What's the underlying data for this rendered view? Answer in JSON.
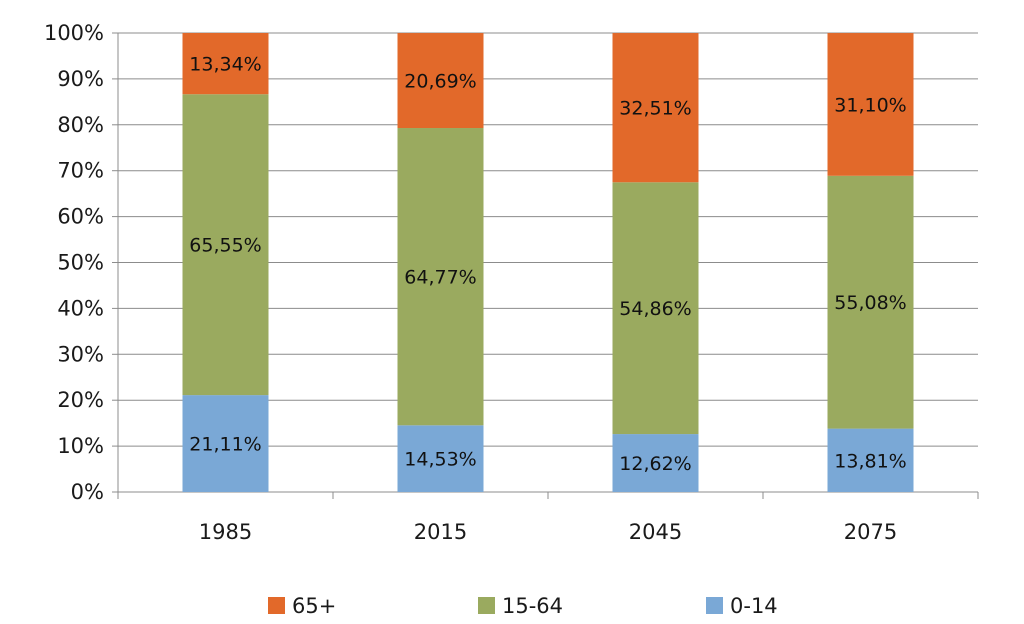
{
  "chart_data": {
    "type": "bar",
    "stacked": true,
    "categories": [
      "1985",
      "2015",
      "2045",
      "2075"
    ],
    "series": [
      {
        "name": "0-14",
        "color": "#7aa8d6",
        "values": [
          21.11,
          14.53,
          12.62,
          13.81
        ],
        "labels": [
          "21,11%",
          "14,53%",
          "12,62%",
          "13,81%"
        ]
      },
      {
        "name": "15-64",
        "color": "#9aaa5f",
        "values": [
          65.55,
          64.77,
          54.86,
          55.08
        ],
        "labels": [
          "65,55%",
          "64,77%",
          "54,86%",
          "55,08%"
        ]
      },
      {
        "name": "65+",
        "color": "#e2692a",
        "values": [
          13.34,
          20.69,
          32.51,
          31.1
        ],
        "labels": [
          "13,34%",
          "20,69%",
          "32,51%",
          "31,10%"
        ]
      }
    ],
    "y_ticks": [
      "0%",
      "10%",
      "20%",
      "30%",
      "40%",
      "50%",
      "60%",
      "70%",
      "80%",
      "90%",
      "100%"
    ],
    "ylim": [
      0,
      100
    ],
    "grid": true,
    "legend_position": "bottom",
    "legend_order": [
      "65+",
      "15-64",
      "0-14"
    ]
  }
}
